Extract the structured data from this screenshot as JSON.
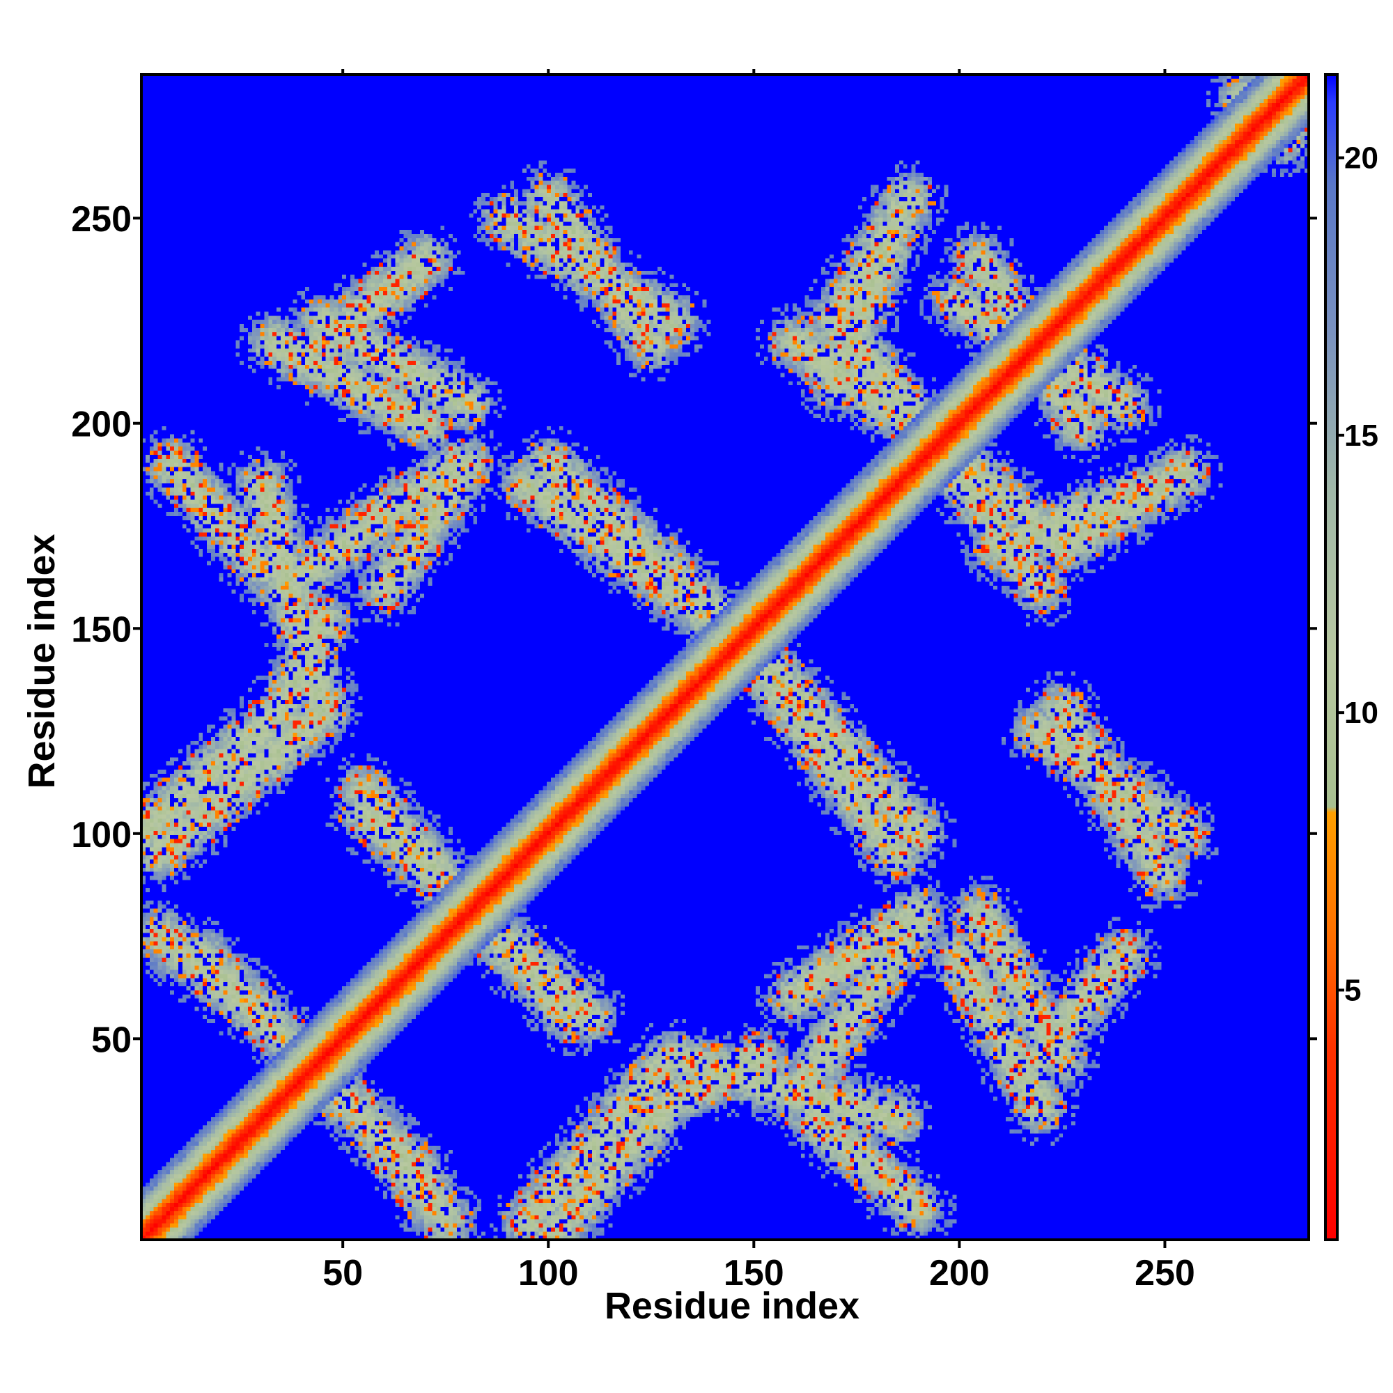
{
  "chart_data": {
    "type": "heatmap",
    "title": "",
    "xlabel": "Residue index",
    "ylabel": "Residue index",
    "xlim": [
      1,
      285
    ],
    "ylim": [
      1,
      285
    ],
    "x_ticks": [
      50,
      100,
      150,
      200,
      250
    ],
    "y_ticks": [
      50,
      100,
      150,
      200,
      250
    ],
    "colorbar": {
      "range": [
        0.5,
        21.5
      ],
      "ticks": [
        5,
        10,
        15,
        20
      ],
      "stops": [
        {
          "value": 0.5,
          "color": "#ff0000"
        },
        {
          "value": 4.0,
          "color": "#ff3300"
        },
        {
          "value": 6.0,
          "color": "#ff7000"
        },
        {
          "value": 8.2,
          "color": "#ffa000"
        },
        {
          "value": 8.3,
          "color": "#a8c090"
        },
        {
          "value": 11.0,
          "color": "#b8c8a0"
        },
        {
          "value": 14.0,
          "color": "#a0b8a8"
        },
        {
          "value": 17.0,
          "color": "#7890c0"
        },
        {
          "value": 19.5,
          "color": "#5a78c8"
        },
        {
          "value": 21.0,
          "color": "#2a3cff"
        },
        {
          "value": 21.5,
          "color": "#0000ff"
        }
      ]
    },
    "background_color": "#0000ff",
    "diagonal_band": {
      "x_range": [
        1,
        285
      ],
      "half_width": 12
    },
    "contact_bands": [
      {
        "from": [
          1,
          100
        ],
        "to": [
          35,
          130
        ]
      },
      {
        "from": [
          35,
          130
        ],
        "to": [
          45,
          152
        ]
      },
      {
        "from": [
          35,
          160
        ],
        "to": [
          78,
          190
        ]
      },
      {
        "from": [
          33,
          220
        ],
        "to": [
          70,
          200
        ]
      },
      {
        "from": [
          30,
          165
        ],
        "to": [
          8,
          190
        ]
      },
      {
        "from": [
          5,
          75
        ],
        "to": [
          30,
          55
        ]
      },
      {
        "from": [
          30,
          55
        ],
        "to": [
          70,
          15
        ]
      },
      {
        "from": [
          55,
          110
        ],
        "to": [
          105,
          55
        ]
      },
      {
        "from": [
          95,
          5
        ],
        "to": [
          130,
          45
        ]
      },
      {
        "from": [
          130,
          45
        ],
        "to": [
          185,
          30
        ]
      },
      {
        "from": [
          160,
          60
        ],
        "to": [
          190,
          80
        ]
      },
      {
        "from": [
          95,
          185
        ],
        "to": [
          150,
          145
        ]
      },
      {
        "from": [
          150,
          145
        ],
        "to": [
          190,
          100
        ]
      },
      {
        "from": [
          90,
          250
        ],
        "to": [
          130,
          225
        ]
      },
      {
        "from": [
          170,
          210
        ],
        "to": [
          185,
          250
        ]
      },
      {
        "from": [
          160,
          220
        ],
        "to": [
          195,
          195
        ]
      },
      {
        "from": [
          195,
          195
        ],
        "to": [
          225,
          170
        ]
      },
      {
        "from": [
          225,
          170
        ],
        "to": [
          255,
          188
        ]
      },
      {
        "from": [
          200,
          230
        ],
        "to": [
          240,
          205
        ]
      },
      {
        "from": [
          220,
          125
        ],
        "to": [
          255,
          100
        ]
      },
      {
        "from": [
          205,
          80
        ],
        "to": [
          225,
          45
        ]
      },
      {
        "from": [
          220,
          45
        ],
        "to": [
          240,
          70
        ]
      },
      {
        "from": [
          270,
          280
        ],
        "to": [
          285,
          275
        ]
      }
    ]
  }
}
